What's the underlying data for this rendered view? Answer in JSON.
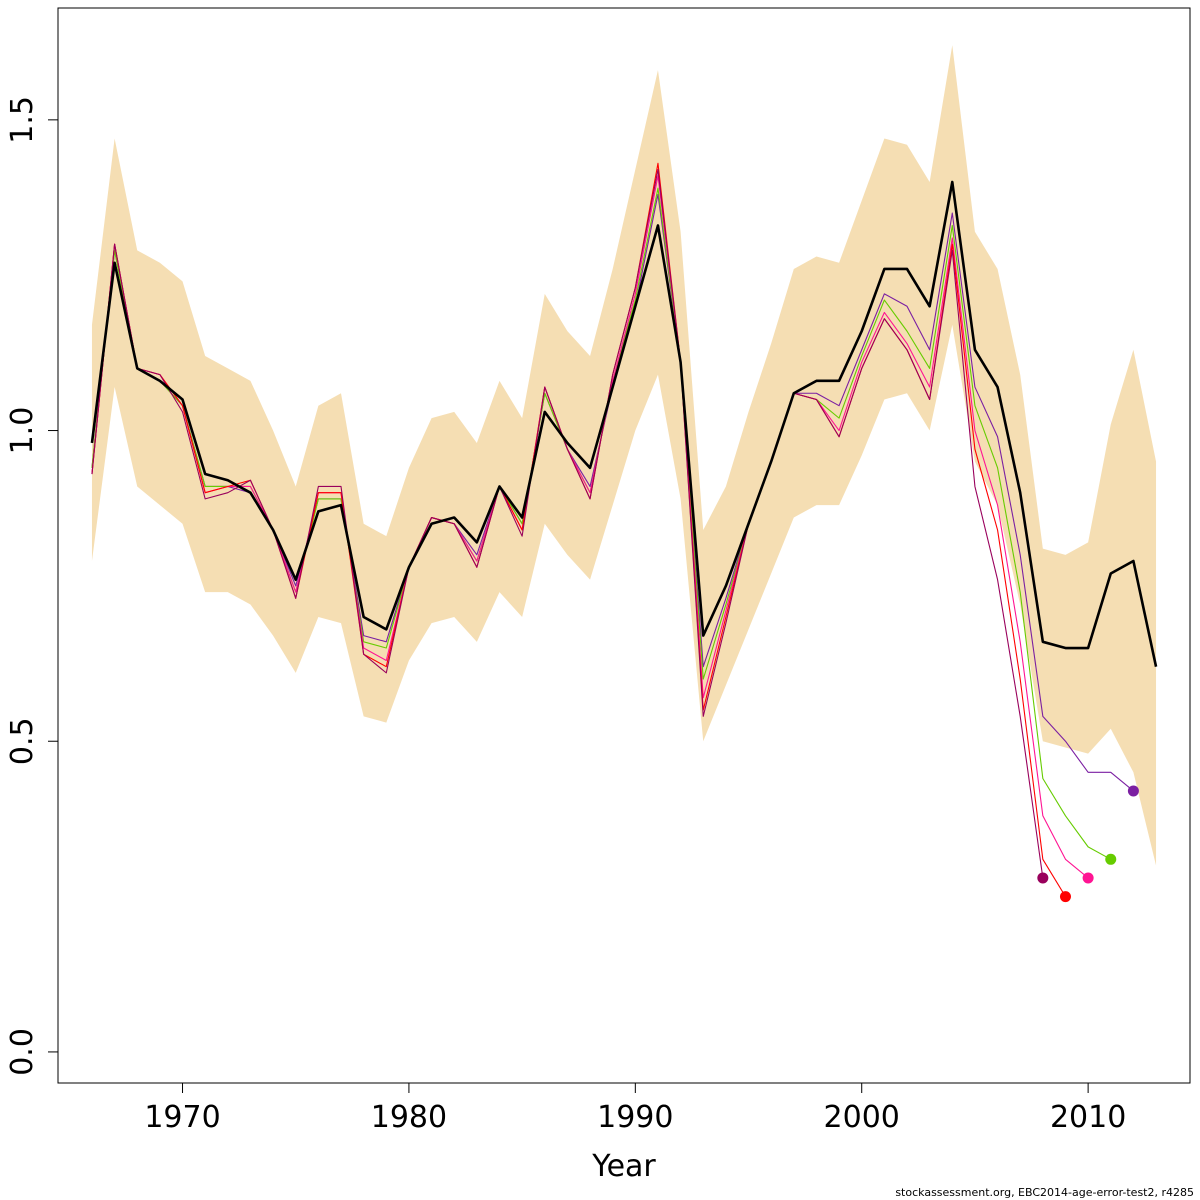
{
  "chart_data": {
    "type": "line",
    "title": "",
    "xlabel": "Year",
    "ylabel": "",
    "xlim": [
      1964.5,
      2014.5
    ],
    "ylim": [
      -0.05,
      1.68
    ],
    "x_ticks": [
      1970,
      1980,
      1990,
      2000,
      2010
    ],
    "y_ticks": [
      0.0,
      0.5,
      1.0,
      1.5
    ],
    "x_tick_labels": [
      "1970",
      "1980",
      "1990",
      "2000",
      "2010"
    ],
    "y_tick_labels": [
      "0.0",
      "0.5",
      "1.0",
      "1.5"
    ],
    "grid": false,
    "band_color": "#F5DEB3",
    "band": {
      "x": [
        1966,
        1967,
        1968,
        1969,
        1970,
        1971,
        1972,
        1973,
        1974,
        1975,
        1976,
        1977,
        1978,
        1979,
        1980,
        1981,
        1982,
        1983,
        1984,
        1985,
        1986,
        1987,
        1988,
        1989,
        1990,
        1991,
        1992,
        1993,
        1994,
        1995,
        1996,
        1997,
        1998,
        1999,
        2000,
        2001,
        2002,
        2003,
        2004,
        2005,
        2006,
        2007,
        2008,
        2009,
        2010,
        2011,
        2012,
        2013
      ],
      "upper": [
        1.17,
        1.47,
        1.29,
        1.27,
        1.24,
        1.12,
        1.1,
        1.08,
        1.0,
        0.91,
        1.04,
        1.06,
        0.85,
        0.83,
        0.94,
        1.02,
        1.03,
        0.98,
        1.08,
        1.02,
        1.22,
        1.16,
        1.12,
        1.26,
        1.42,
        1.58,
        1.32,
        0.84,
        0.91,
        1.03,
        1.14,
        1.26,
        1.28,
        1.27,
        1.37,
        1.47,
        1.46,
        1.4,
        1.62,
        1.32,
        1.26,
        1.09,
        0.81,
        0.8,
        0.82,
        1.01,
        1.13,
        0.95
      ],
      "lower": [
        0.79,
        1.07,
        0.91,
        0.88,
        0.85,
        0.74,
        0.74,
        0.72,
        0.67,
        0.61,
        0.7,
        0.69,
        0.54,
        0.53,
        0.63,
        0.69,
        0.7,
        0.66,
        0.74,
        0.7,
        0.85,
        0.8,
        0.76,
        0.88,
        1.0,
        1.09,
        0.89,
        0.5,
        0.59,
        0.68,
        0.77,
        0.86,
        0.88,
        0.88,
        0.96,
        1.05,
        1.06,
        1.0,
        1.17,
        0.95,
        0.88,
        0.72,
        0.5,
        0.49,
        0.48,
        0.52,
        0.45,
        0.3
      ]
    },
    "series": [
      {
        "color": "#000000",
        "width": 2.6,
        "x": [
          1966,
          1967,
          1968,
          1969,
          1970,
          1971,
          1972,
          1973,
          1974,
          1975,
          1976,
          1977,
          1978,
          1979,
          1980,
          1981,
          1982,
          1983,
          1984,
          1985,
          1986,
          1987,
          1988,
          1989,
          1990,
          1991,
          1992,
          1993,
          1994,
          1995,
          1996,
          1997,
          1998,
          1999,
          2000,
          2001,
          2002,
          2003,
          2004,
          2005,
          2006,
          2007,
          2008,
          2009,
          2010,
          2011,
          2012,
          2013
        ],
        "values": [
          0.98,
          1.27,
          1.1,
          1.08,
          1.05,
          0.93,
          0.92,
          0.9,
          0.84,
          0.76,
          0.87,
          0.88,
          0.7,
          0.68,
          0.78,
          0.85,
          0.86,
          0.82,
          0.91,
          0.86,
          1.03,
          0.98,
          0.94,
          1.07,
          1.2,
          1.33,
          1.11,
          0.67,
          0.75,
          0.85,
          0.95,
          1.06,
          1.08,
          1.08,
          1.16,
          1.26,
          1.26,
          1.2,
          1.4,
          1.13,
          1.07,
          0.9,
          0.66,
          0.65,
          0.65,
          0.77,
          0.79,
          0.62
        ]
      },
      {
        "color": "#7B1FA2",
        "width": 1.1,
        "dot": true,
        "x": [
          1966,
          1967,
          1968,
          1969,
          1970,
          1971,
          1972,
          1973,
          1974,
          1975,
          1976,
          1977,
          1978,
          1979,
          1980,
          1981,
          1982,
          1983,
          1984,
          1985,
          1986,
          1987,
          1988,
          1989,
          1990,
          1991,
          1992,
          1993,
          1994,
          1995,
          1996,
          1997,
          1998,
          1999,
          2000,
          2001,
          2002,
          2003,
          2004,
          2005,
          2006,
          2007,
          2008,
          2009,
          2010,
          2011,
          2012
        ],
        "values": [
          0.94,
          1.29,
          1.1,
          1.08,
          1.04,
          0.91,
          0.91,
          0.9,
          0.84,
          0.75,
          0.89,
          0.89,
          0.67,
          0.66,
          0.78,
          0.86,
          0.85,
          0.8,
          0.91,
          0.85,
          1.06,
          0.97,
          0.91,
          1.07,
          1.2,
          1.38,
          1.11,
          0.62,
          0.73,
          0.85,
          0.95,
          1.06,
          1.06,
          1.04,
          1.13,
          1.22,
          1.2,
          1.13,
          1.35,
          1.07,
          0.99,
          0.8,
          0.54,
          0.5,
          0.45,
          0.45,
          0.42
        ]
      },
      {
        "color": "#66CC00",
        "width": 1.1,
        "dot": true,
        "x": [
          1966,
          1967,
          1968,
          1969,
          1970,
          1971,
          1972,
          1973,
          1974,
          1975,
          1976,
          1977,
          1978,
          1979,
          1980,
          1981,
          1982,
          1983,
          1984,
          1985,
          1986,
          1987,
          1988,
          1989,
          1990,
          1991,
          1992,
          1993,
          1994,
          1995,
          1996,
          1997,
          1998,
          1999,
          2000,
          2001,
          2002,
          2003,
          2004,
          2005,
          2006,
          2007,
          2008,
          2009,
          2010,
          2011
        ],
        "values": [
          0.94,
          1.29,
          1.1,
          1.08,
          1.04,
          0.91,
          0.91,
          0.91,
          0.84,
          0.74,
          0.89,
          0.89,
          0.66,
          0.65,
          0.78,
          0.86,
          0.85,
          0.79,
          0.91,
          0.85,
          1.06,
          0.97,
          0.9,
          1.08,
          1.21,
          1.39,
          1.11,
          0.6,
          0.72,
          0.85,
          0.95,
          1.06,
          1.05,
          1.02,
          1.12,
          1.21,
          1.16,
          1.1,
          1.33,
          1.04,
          0.94,
          0.74,
          0.44,
          0.38,
          0.33,
          0.31
        ]
      },
      {
        "color": "#FF1493",
        "width": 1.1,
        "dot": true,
        "x": [
          1966,
          1967,
          1968,
          1969,
          1970,
          1971,
          1972,
          1973,
          1974,
          1975,
          1976,
          1977,
          1978,
          1979,
          1980,
          1981,
          1982,
          1983,
          1984,
          1985,
          1986,
          1987,
          1988,
          1989,
          1990,
          1991,
          1992,
          1993,
          1994,
          1995,
          1996,
          1997,
          1998,
          1999,
          2000,
          2001,
          2002,
          2003,
          2004,
          2005,
          2006,
          2007,
          2008,
          2009,
          2010
        ],
        "values": [
          0.93,
          1.3,
          1.1,
          1.09,
          1.04,
          0.9,
          0.91,
          0.91,
          0.84,
          0.74,
          0.9,
          0.9,
          0.65,
          0.63,
          0.78,
          0.86,
          0.85,
          0.79,
          0.91,
          0.84,
          1.07,
          0.97,
          0.9,
          1.08,
          1.22,
          1.41,
          1.11,
          0.57,
          0.71,
          0.85,
          0.95,
          1.06,
          1.05,
          1.0,
          1.11,
          1.19,
          1.14,
          1.07,
          1.31,
          1.0,
          0.88,
          0.66,
          0.38,
          0.31,
          0.28
        ]
      },
      {
        "color": "#FF0000",
        "width": 1.1,
        "dot": true,
        "x": [
          1966,
          1967,
          1968,
          1969,
          1970,
          1971,
          1972,
          1973,
          1974,
          1975,
          1976,
          1977,
          1978,
          1979,
          1980,
          1981,
          1982,
          1983,
          1984,
          1985,
          1986,
          1987,
          1988,
          1989,
          1990,
          1991,
          1992,
          1993,
          1994,
          1995,
          1996,
          1997,
          1998,
          1999,
          2000,
          2001,
          2002,
          2003,
          2004,
          2005,
          2006,
          2007,
          2008,
          2009
        ],
        "values": [
          0.93,
          1.3,
          1.1,
          1.09,
          1.04,
          0.9,
          0.91,
          0.92,
          0.84,
          0.73,
          0.9,
          0.9,
          0.64,
          0.62,
          0.78,
          0.86,
          0.85,
          0.78,
          0.91,
          0.84,
          1.07,
          0.97,
          0.89,
          1.09,
          1.23,
          1.43,
          1.11,
          0.55,
          0.7,
          0.85,
          0.95,
          1.06,
          1.05,
          0.99,
          1.1,
          1.18,
          1.13,
          1.05,
          1.3,
          0.97,
          0.84,
          0.6,
          0.31,
          0.25
        ]
      },
      {
        "color": "#99005C",
        "width": 1.1,
        "dot": true,
        "x": [
          1966,
          1967,
          1968,
          1969,
          1970,
          1971,
          1972,
          1973,
          1974,
          1975,
          1976,
          1977,
          1978,
          1979,
          1980,
          1981,
          1982,
          1983,
          1984,
          1985,
          1986,
          1987,
          1988,
          1989,
          1990,
          1991,
          1992,
          1993,
          1994,
          1995,
          1996,
          1997,
          1998,
          1999,
          2000,
          2001,
          2002,
          2003,
          2004,
          2005,
          2006,
          2007,
          2008
        ],
        "values": [
          0.93,
          1.3,
          1.1,
          1.09,
          1.03,
          0.89,
          0.9,
          0.92,
          0.84,
          0.73,
          0.91,
          0.91,
          0.64,
          0.61,
          0.78,
          0.86,
          0.85,
          0.78,
          0.91,
          0.83,
          1.07,
          0.97,
          0.89,
          1.09,
          1.23,
          1.42,
          1.11,
          0.54,
          0.69,
          0.85,
          0.95,
          1.06,
          1.05,
          0.99,
          1.1,
          1.18,
          1.13,
          1.05,
          1.29,
          0.91,
          0.76,
          0.54,
          0.28
        ]
      }
    ],
    "footnote": "stockassessment.org, EBC2014-age-error-test2, r4285"
  }
}
